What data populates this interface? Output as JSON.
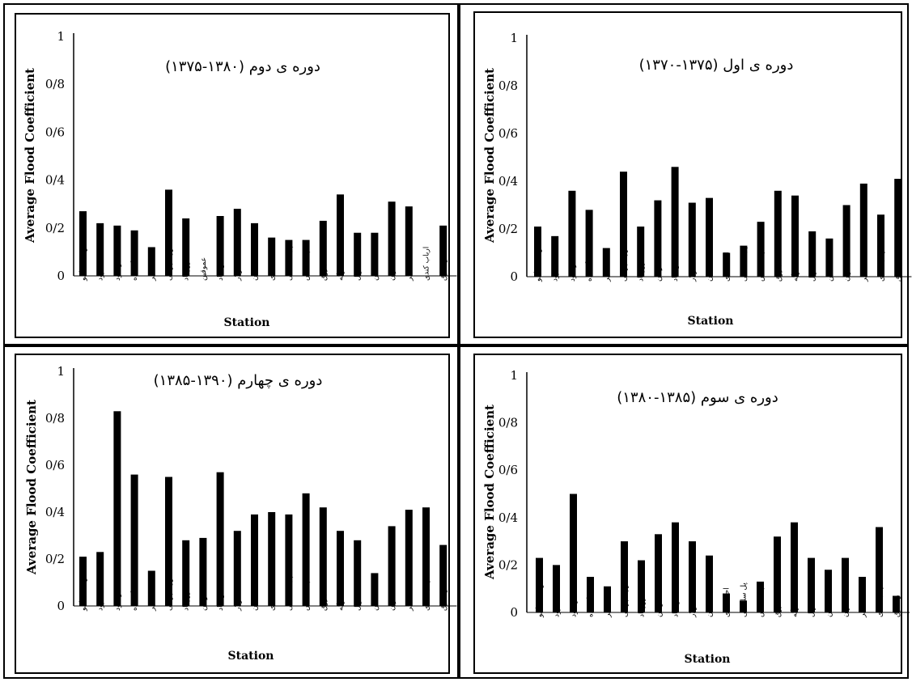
{
  "y_axis_label": "Average Flood Coefficient",
  "x_axis_label": "Station",
  "stations": [
    "دوست بیگلو",
    "درود",
    "اکبر داود",
    "گیلانده",
    "نیر",
    "کوزه تپراقی",
    "فیروزاباد",
    "عموقین",
    "شمس اباد",
    "سولار",
    "سامیان",
    "احمدکندی",
    "پل سلطانی",
    "پل الماس",
    "باروق",
    "الادیزگه",
    "ایریل",
    "نمین",
    "ننه کران",
    "هیر",
    "ارباب کندی",
    "ویلادرق"
  ],
  "chart_data": [
    {
      "type": "bar",
      "title": "دوره ی اول (۱۳۷۵-۱۳۷۰)",
      "xlabel": "Station",
      "ylabel": "Average Flood Coefficient",
      "ylim": [
        0,
        1
      ],
      "y_tick_labels": [
        "0",
        "0/2",
        "0/4",
        "0/6",
        "0/8",
        "1"
      ],
      "categories": [
        "دوست بیگلو",
        "درود",
        "اکبر داود",
        "گیلانده",
        "نیر",
        "کوزه تپراقی",
        "فیروزاباد",
        "عموقین",
        "شمس اباد",
        "سولار",
        "سامیان",
        "احمدکندی",
        "پل سلطانی",
        "پل الماس",
        "باروق",
        "الادیزگه",
        "ایریل",
        "نمین",
        "ننه کران",
        "هیر",
        "ارباب کندی",
        "ویلادرق"
      ],
      "values": [
        0.21,
        0.17,
        0.36,
        0.28,
        0.12,
        0.44,
        0.21,
        0.32,
        0.46,
        0.31,
        0.33,
        0.1,
        0.13,
        0.23,
        0.36,
        0.34,
        0.19,
        0.16,
        0.3,
        0.39,
        0.26,
        0.41
      ]
    },
    {
      "type": "bar",
      "title": "دوره ی دوم (۱۳۸۰-۱۳۷۵)",
      "xlabel": "Station",
      "ylabel": "Average Flood Coefficient",
      "ylim": [
        0,
        1
      ],
      "y_tick_labels": [
        "0",
        "0/2",
        "0/4",
        "0/6",
        "0/8",
        "1"
      ],
      "categories": [
        "دوست بیگلو",
        "درود",
        "اکبر داود",
        "گیلانده",
        "نیر",
        "کوزه تپراقی",
        "فیروزاباد",
        "عموقین",
        "شمس اباد",
        "سولار",
        "سامیان",
        "احمدکندی",
        "پل سلطانی",
        "پل الماس",
        "باروق",
        "الادیزگه",
        "ایریل",
        "نمین",
        "ننه کران",
        "هیر",
        "ارباب کندی",
        "ویلادرق"
      ],
      "values": [
        0.27,
        0.22,
        0.21,
        0.19,
        0.12,
        0.36,
        0.24,
        0,
        0.25,
        0.28,
        0.22,
        0.16,
        0.15,
        0.15,
        0.23,
        0.34,
        0.18,
        0.18,
        0.31,
        0.29,
        0,
        0.21
      ]
    },
    {
      "type": "bar",
      "title": "دوره ی سوم (۱۳۸۵-۱۳۸۰)",
      "xlabel": "Station",
      "ylabel": "Average Flood Coefficient",
      "ylim": [
        0,
        1
      ],
      "y_tick_labels": [
        "0",
        "0/2",
        "0/4",
        "0/6",
        "0/8",
        "1"
      ],
      "categories": [
        "دوست بیگلو",
        "درود",
        "اکبر داود",
        "گیلانده",
        "نیر",
        "کوزه تپراقی",
        "فیروزاباد",
        "عموقین",
        "شمس اباد",
        "سولار",
        "سامیان",
        "احمدکندی",
        "پل سلطانی",
        "پل الماس",
        "باروق",
        "الادیزگه",
        "ایریل",
        "نمین",
        "ننه کران",
        "هیر",
        "ارباب کندی",
        "ویلادرق"
      ],
      "values": [
        0.23,
        0.2,
        0.5,
        0.15,
        0.11,
        0.3,
        0.22,
        0.33,
        0.38,
        0.3,
        0.24,
        0.08,
        0.05,
        0.13,
        0.32,
        0.38,
        0.23,
        0.18,
        0.23,
        0.15,
        0.36,
        0.07
      ]
    },
    {
      "type": "bar",
      "title": "دوره ی چهارم (۱۳۹۰-۱۳۸۵)",
      "xlabel": "Station",
      "ylabel": "Average Flood Coefficient",
      "ylim": [
        0,
        1
      ],
      "y_tick_labels": [
        "0",
        "0/2",
        "0/4",
        "0/6",
        "0/8",
        "1"
      ],
      "categories": [
        "دوست بیگلو",
        "درود",
        "اکبر داود",
        "گیلانده",
        "نیر",
        "کوزه تپراقی",
        "فیروزاباد",
        "عموقین",
        "شمس اباد",
        "سولار",
        "سامیان",
        "احمدکندی",
        "پل سلطانی",
        "پل الماس",
        "باروق",
        "الادیزگه",
        "ایریل",
        "نمین",
        "ننه کران",
        "هیر",
        "ارباب کندی",
        "ویلادرق"
      ],
      "values": [
        0.21,
        0.23,
        0.83,
        0.56,
        0.15,
        0.55,
        0.28,
        0.29,
        0.57,
        0.32,
        0.39,
        0.4,
        0.39,
        0.48,
        0.42,
        0.32,
        0.28,
        0.14,
        0.34,
        0.41,
        0.42,
        0.26
      ]
    }
  ]
}
